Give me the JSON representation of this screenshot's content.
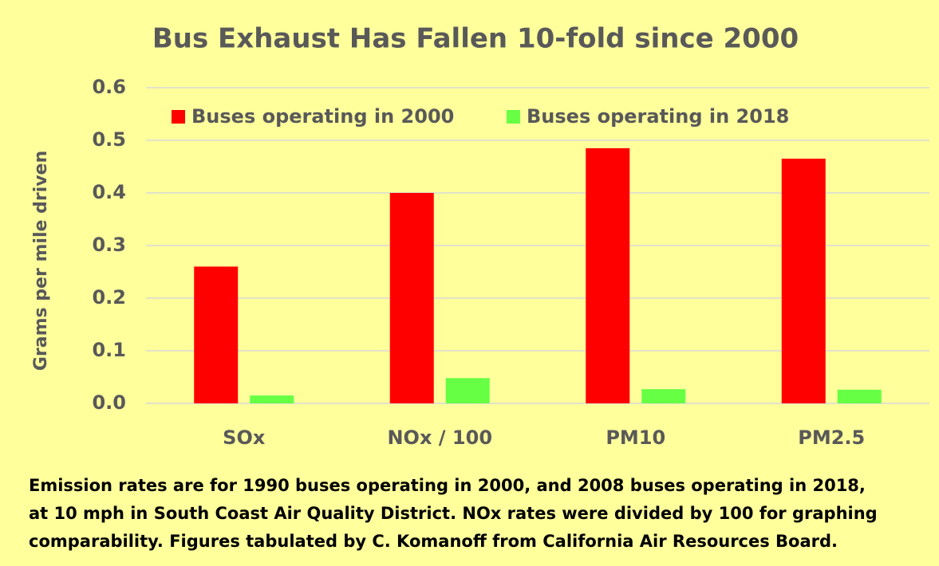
{
  "chart_data": {
    "type": "bar",
    "title": "Bus Exhaust Has Fallen 10-fold since 2000",
    "y_label": "Grams per mile driven",
    "categories": [
      "SOx",
      "NOx / 100",
      "PM10",
      "PM2.5"
    ],
    "series": [
      {
        "name": "Buses operating in 2000",
        "color": "#ff0000",
        "values": [
          0.26,
          0.4,
          0.485,
          0.465
        ]
      },
      {
        "name": "Buses operating in 2018",
        "color": "#66ff44",
        "values": [
          0.015,
          0.048,
          0.027,
          0.026
        ]
      }
    ],
    "ylim": [
      0,
      0.6
    ],
    "yticks": [
      {
        "value": 0,
        "label": "0.0"
      },
      0.1,
      0.2,
      0.3,
      0.4,
      0.5,
      0.6
    ],
    "grid": true,
    "legend": "top",
    "note": [
      "Emission rates are for 1990 buses operating in 2000, and 2008 buses operating in 2018,",
      "at 10 mph in South Coast Air Quality District. NOx rates were divided by 100 for graphing",
      "comparability. Figures tabulated by C. Komanoff from California Air Resources Board."
    ]
  }
}
